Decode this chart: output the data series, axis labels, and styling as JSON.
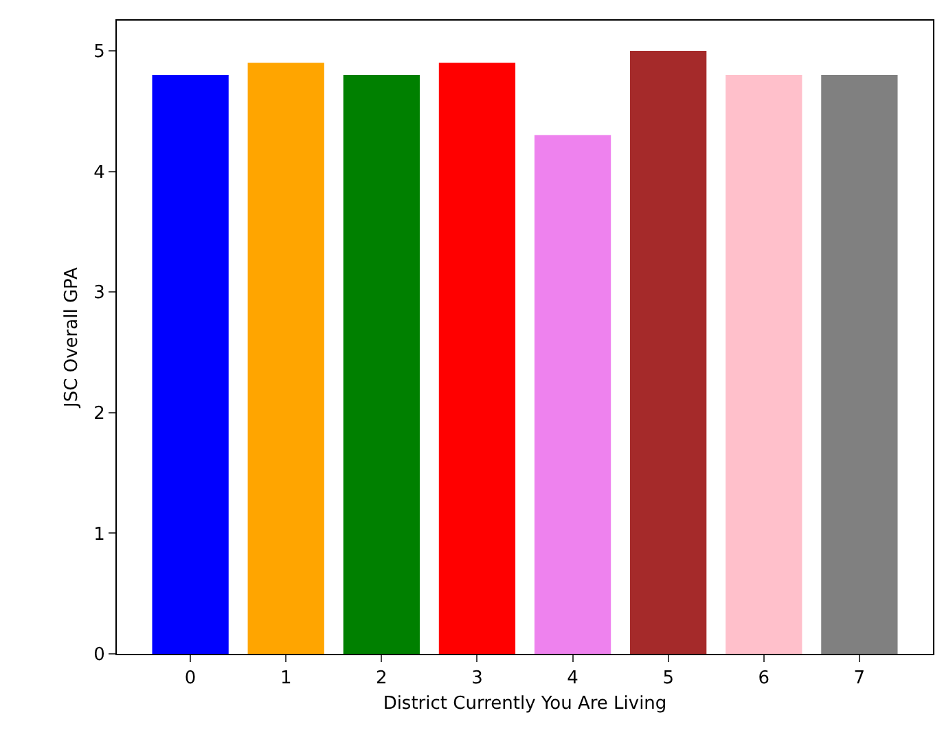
{
  "chart_data": {
    "type": "bar",
    "xlabel": "District Currently You Are Living",
    "ylabel": "JSC Overall GPA",
    "categories": [
      "0",
      "1",
      "2",
      "3",
      "4",
      "5",
      "6",
      "7"
    ],
    "values": [
      4.8,
      4.9,
      4.8,
      4.9,
      4.3,
      5.0,
      4.8,
      4.8
    ],
    "colors": [
      "#0000ff",
      "#ffa500",
      "#008000",
      "#ff0000",
      "#ee82ee",
      "#a52a2a",
      "#ffc0cb",
      "#808080"
    ],
    "ylim": [
      0,
      5.25
    ],
    "yticks": [
      0,
      1,
      2,
      3,
      4,
      5
    ],
    "grid": false
  }
}
